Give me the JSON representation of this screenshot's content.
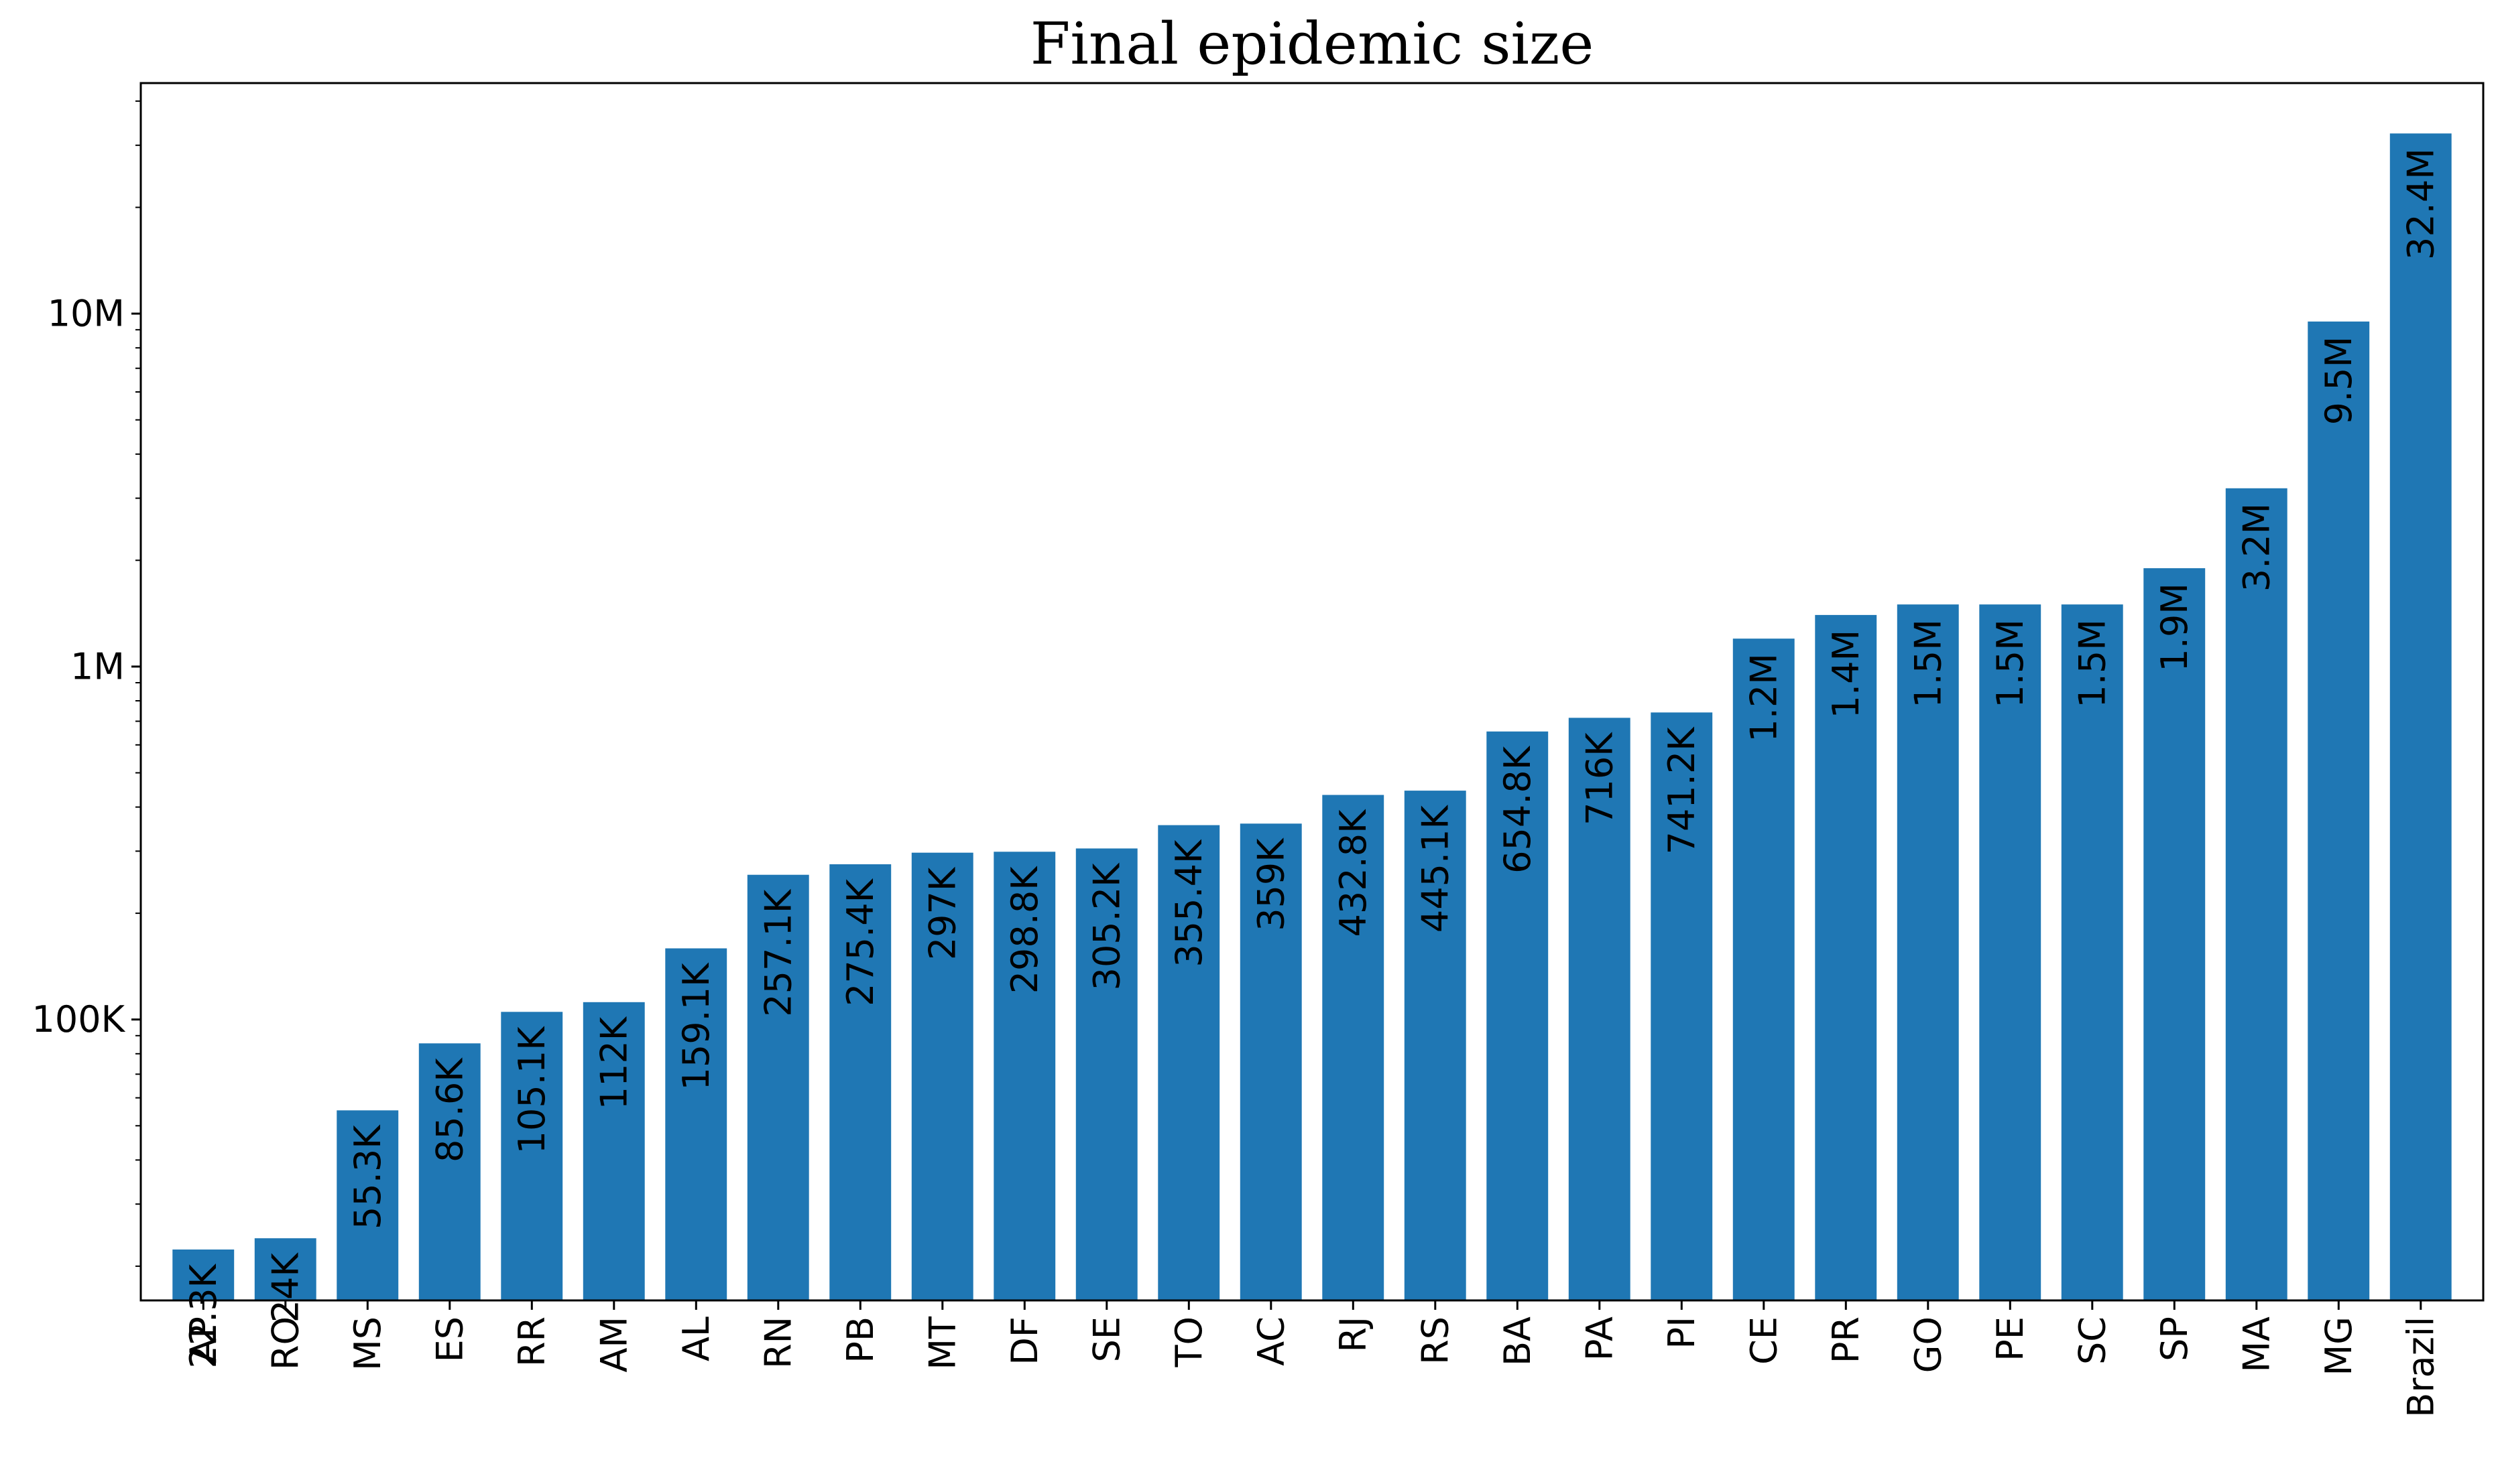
{
  "chart_data": {
    "type": "bar",
    "title": "Final epidemic size",
    "xlabel": "",
    "ylabel": "",
    "yscale": "log",
    "ylim": [
      16000,
      45000000
    ],
    "grid": false,
    "bar_color": "#1f77b4",
    "yticks": [
      {
        "value": 100000,
        "label": "100K"
      },
      {
        "value": 1000000,
        "label": "1M"
      },
      {
        "value": 10000000,
        "label": "10M"
      }
    ],
    "categories": [
      "AP",
      "RO",
      "MS",
      "ES",
      "RR",
      "AM",
      "AL",
      "RN",
      "PB",
      "MT",
      "DF",
      "SE",
      "TO",
      "AC",
      "RJ",
      "RS",
      "BA",
      "PA",
      "PI",
      "CE",
      "PR",
      "GO",
      "PE",
      "SC",
      "SP",
      "MA",
      "MG",
      "Brazil"
    ],
    "values": [
      22300,
      24000,
      55300,
      85600,
      105100,
      112000,
      159100,
      257100,
      275400,
      297000,
      298800,
      305200,
      355400,
      359000,
      432800,
      445100,
      654800,
      716000,
      741200,
      1200000,
      1400000,
      1500000,
      1500000,
      1500000,
      1900000,
      3200000,
      9500000,
      32400000
    ],
    "value_labels": [
      "22.3K",
      "24K",
      "55.3K",
      "85.6K",
      "105.1K",
      "112K",
      "159.1K",
      "257.1K",
      "275.4K",
      "297K",
      "298.8K",
      "305.2K",
      "355.4K",
      "359K",
      "432.8K",
      "445.1K",
      "654.8K",
      "716K",
      "741.2K",
      "1.2M",
      "1.4M",
      "1.5M",
      "1.5M",
      "1.5M",
      "1.9M",
      "3.2M",
      "9.5M",
      "32.4M"
    ]
  }
}
